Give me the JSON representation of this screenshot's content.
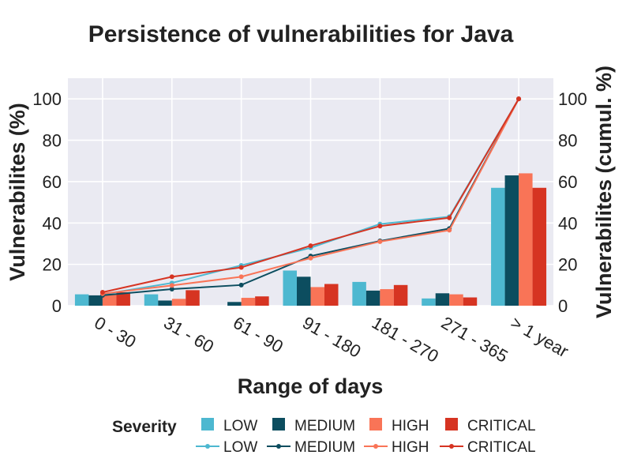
{
  "chart_data": {
    "type": "bar",
    "title": "Persistence of vulnerabilities for Java",
    "xlabel": "Range of days",
    "ylabel": "Vulnerabilites (%)",
    "y2label": "Vulnerabilites (cumul. %)",
    "ylim": [
      0,
      110
    ],
    "y2lim": [
      0,
      110
    ],
    "yticks": [
      "0",
      "20",
      "40",
      "60",
      "80",
      "100"
    ],
    "y2ticks": [
      "0",
      "20",
      "40",
      "60",
      "80",
      "100"
    ],
    "categories": [
      "0 - 30",
      "31 - 60",
      "61 - 90",
      "91 - 180",
      "181 - 270",
      "271 - 365",
      "> 1 year"
    ],
    "legend": {
      "title": "Severity",
      "bar_labels": [
        "LOW",
        "MEDIUM",
        "HIGH",
        "CRITICAL"
      ],
      "line_labels": [
        "LOW",
        "MEDIUM",
        "HIGH",
        "CRITICAL"
      ],
      "placement": "bottom"
    },
    "series": [
      {
        "name": "LOW",
        "color": "#4DB8D0",
        "values": [
          5.5,
          5.5,
          0,
          17,
          11.5,
          3.5,
          57
        ],
        "cumulative": [
          5.5,
          11,
          19.5,
          28,
          39.5,
          43,
          100
        ]
      },
      {
        "name": "MEDIUM",
        "color": "#0C4D5F",
        "values": [
          5.0,
          2.5,
          1.8,
          14,
          7.3,
          6.0,
          63
        ],
        "cumulative": [
          5.0,
          8.0,
          10.0,
          24.0,
          31.3,
          37.3,
          100
        ]
      },
      {
        "name": "HIGH",
        "color": "#F97457",
        "values": [
          5.8,
          3.3,
          3.8,
          9.0,
          8.0,
          5.5,
          64
        ],
        "cumulative": [
          5.8,
          9.8,
          14.0,
          23.0,
          31.0,
          36.5,
          100
        ]
      },
      {
        "name": "CRITICAL",
        "color": "#D63422",
        "values": [
          6.5,
          7.5,
          4.5,
          10.5,
          10.0,
          4.0,
          57
        ],
        "cumulative": [
          6.5,
          14.0,
          18.5,
          29.0,
          38.5,
          42.5,
          100
        ]
      }
    ]
  }
}
